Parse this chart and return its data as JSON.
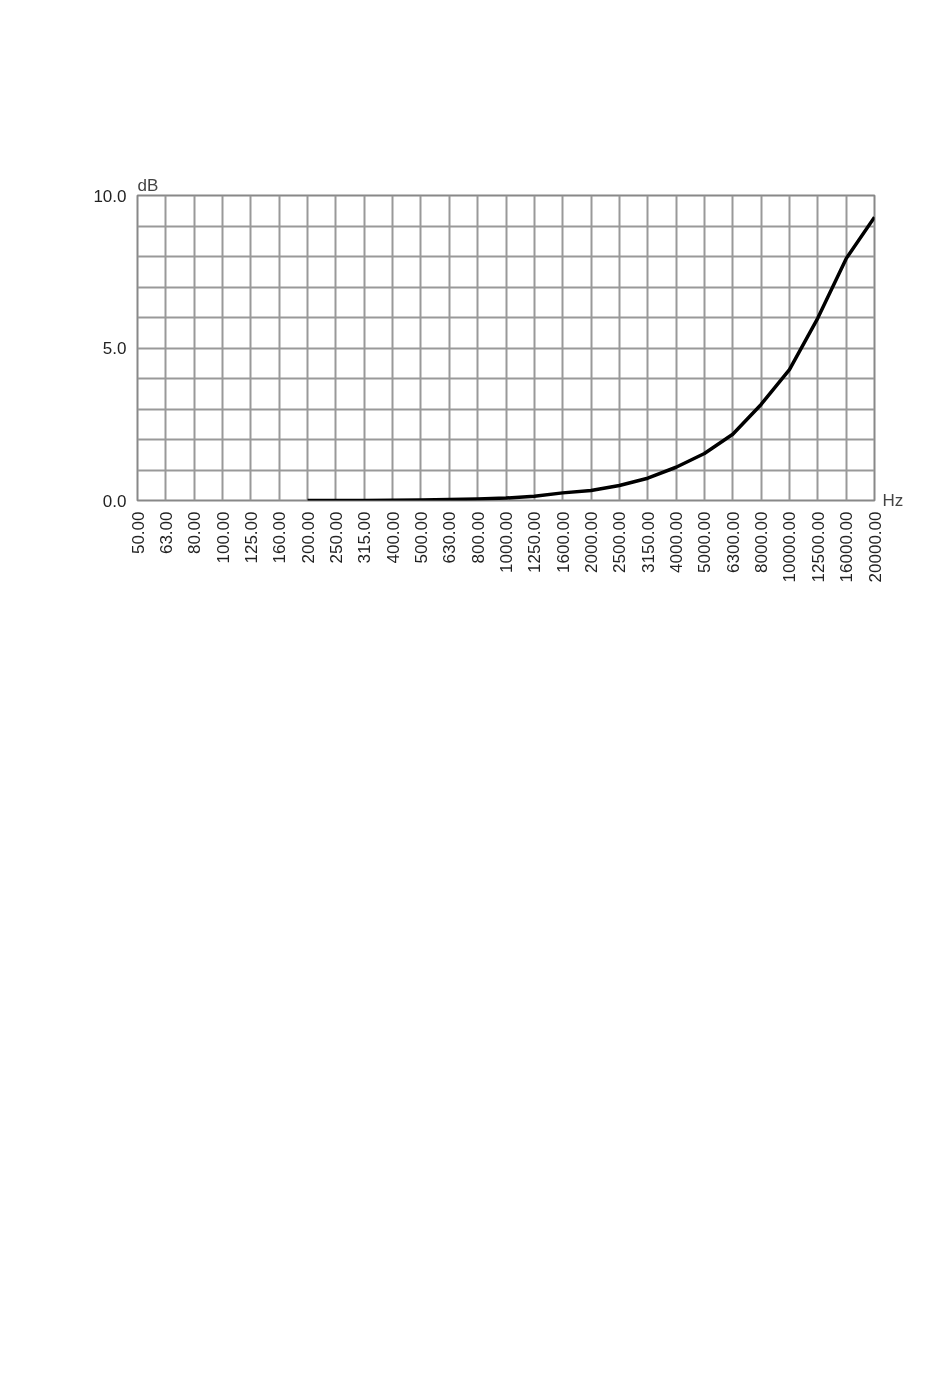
{
  "chart_data": {
    "type": "line",
    "xlabel": "Hz",
    "ylabel": "dB",
    "categories": [
      "50.00",
      "63.00",
      "80.00",
      "100.00",
      "125.00",
      "160.00",
      "200.00",
      "250.00",
      "315.00",
      "400.00",
      "500.00",
      "630.00",
      "800.00",
      "1000.00",
      "1250.00",
      "1600.00",
      "2000.00",
      "2500.00",
      "3150.00",
      "4000.00",
      "5000.00",
      "6300.00",
      "8000.00",
      "10000.00",
      "12500.00",
      "16000.00",
      "20000.00"
    ],
    "series": [
      {
        "color": "#000000",
        "values": [
          null,
          null,
          null,
          null,
          null,
          null,
          0,
          0,
          0,
          0.01,
          0.02,
          0.03,
          0.05,
          0.08,
          0.14,
          0.25,
          0.33,
          0.49,
          0.73,
          1.09,
          1.54,
          2.17,
          3.15,
          4.29,
          5.98,
          7.93,
          9.29
        ]
      }
    ],
    "ylim": [
      0,
      10
    ],
    "yticks": [
      {
        "value": 0,
        "label": "0.0"
      },
      {
        "value": 1,
        "label": null
      },
      {
        "value": 2,
        "label": null
      },
      {
        "value": 3,
        "label": null
      },
      {
        "value": 4,
        "label": null
      },
      {
        "value": 5,
        "label": "5.0"
      },
      {
        "value": 6,
        "label": null
      },
      {
        "value": 7,
        "label": null
      },
      {
        "value": 8,
        "label": null
      },
      {
        "value": 9,
        "label": null
      },
      {
        "value": 10,
        "label": "10.0"
      }
    ],
    "grid": true
  }
}
